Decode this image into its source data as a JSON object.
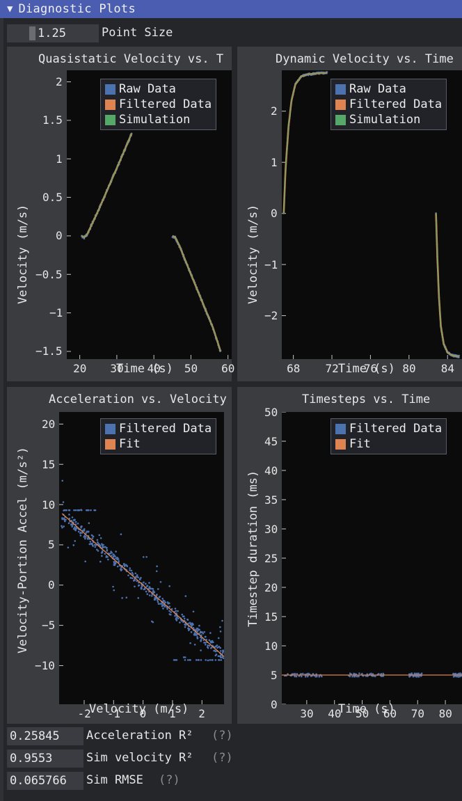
{
  "header": {
    "arrow": "▼",
    "title": "Diagnostic Plots"
  },
  "point_size": {
    "value": "1.25",
    "label": "Point Size"
  },
  "stats": [
    {
      "value": "0.25845",
      "label": "Acceleration R²",
      "help": "(?)"
    },
    {
      "value": "0.9553",
      "label": "Sim velocity R²",
      "help": "(?)"
    },
    {
      "value": "0.065766",
      "label": "Sim RMSE",
      "help": "(?)"
    }
  ],
  "colors": {
    "raw": "#4c72b0",
    "filtered": "#dd8452",
    "sim": "#55a868"
  },
  "chart_data": [
    {
      "type": "line",
      "title": "Quasistatic Velocity vs. T",
      "xlabel": "Time (s)",
      "ylabel": "Velocity (m/s)",
      "xlim": [
        16.5,
        61
      ],
      "ylim": [
        -1.6,
        2.15
      ],
      "xticks": [
        20,
        30,
        40,
        50,
        60
      ],
      "yticks": [
        -1.5,
        -1,
        -0.5,
        0,
        0.5,
        1,
        1.5,
        2
      ],
      "legend": [
        "Raw Data",
        "Filtered Data",
        "Simulation"
      ],
      "segments": [
        {
          "x": [
            20.5,
            21.2,
            22,
            25,
            28,
            31,
            34
          ],
          "y": [
            0,
            -0.02,
            0.02,
            0.33,
            0.66,
            0.99,
            1.33
          ]
        },
        {
          "x": [
            45,
            45.8,
            47,
            50,
            53,
            56,
            58
          ],
          "y": [
            0,
            -0.02,
            -0.14,
            -0.5,
            -0.85,
            -1.2,
            -1.5
          ]
        }
      ]
    },
    {
      "type": "line",
      "title": "Dynamic Velocity vs. Time",
      "xlabel": "Time (s)",
      "ylabel": "Velocity (m/s)",
      "xlim": [
        66.8,
        85.5
      ],
      "ylim": [
        -2.85,
        2.8
      ],
      "xticks": [
        68,
        72,
        76,
        80,
        84
      ],
      "yticks": [
        -2,
        -1,
        0,
        1,
        2
      ],
      "legend": [
        "Raw Data",
        "Filtered Data",
        "Simulation"
      ],
      "segments": [
        {
          "x": [
            67,
            67.2,
            67.5,
            67.8,
            68.2,
            68.8,
            69.5,
            70.5,
            71.5
          ],
          "y": [
            0,
            0.9,
            1.7,
            2.2,
            2.52,
            2.68,
            2.72,
            2.74,
            2.75
          ]
        },
        {
          "x": [
            82.8,
            82.95,
            83.1,
            83.3,
            83.6,
            84,
            84.5,
            85.2
          ],
          "y": [
            0,
            -0.9,
            -1.6,
            -2.2,
            -2.55,
            -2.72,
            -2.78,
            -2.8
          ]
        }
      ]
    },
    {
      "type": "scatter",
      "title": "Acceleration vs. Velocity",
      "xlabel": "Velocity (m/s)",
      "ylabel": "Velocity-Portion Accel (m/s²)",
      "xlim": [
        -2.85,
        2.75
      ],
      "ylim": [
        -14.8,
        21.5
      ],
      "xticks": [
        -2,
        -1,
        0,
        1,
        2
      ],
      "yticks": [
        -10,
        -5,
        0,
        5,
        10,
        15,
        20
      ],
      "legend": [
        "Filtered Data",
        "Fit"
      ],
      "fit": {
        "slope": -3.23,
        "intercept": 0,
        "x": [
          -2.75,
          2.75
        ]
      }
    },
    {
      "type": "line",
      "title": "Timesteps vs. Time",
      "xlabel": "Time (s)",
      "ylabel": "Timestep duration (ms)",
      "xlim": [
        21,
        86
      ],
      "ylim": [
        0,
        50
      ],
      "xticks": [
        30,
        40,
        50,
        60,
        70,
        80
      ],
      "yticks": [
        0,
        5,
        10,
        15,
        20,
        25,
        30,
        35,
        40,
        45,
        50
      ],
      "legend": [
        "Filtered Data",
        "Fit"
      ],
      "fit_value": 5
    }
  ]
}
